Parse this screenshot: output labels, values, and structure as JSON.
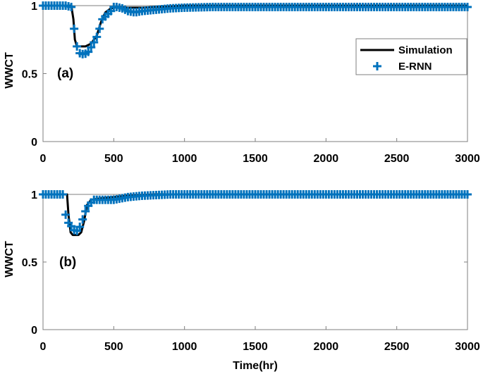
{
  "chart_data": [
    {
      "type": "line",
      "panel_label": "(a)",
      "title": "",
      "xlabel": "",
      "ylabel": "WWCT",
      "xlim": [
        0,
        3000
      ],
      "ylim": [
        0,
        1
      ],
      "xticks": [
        0,
        500,
        1000,
        1500,
        2000,
        2500,
        3000
      ],
      "yticks": [
        0,
        0.5,
        1
      ],
      "ytick_labels": [
        "0",
        "0.5",
        "1"
      ],
      "grid": false,
      "legend": {
        "position": "upper right",
        "entries": [
          "Simulation",
          "E-RNN"
        ]
      },
      "series": [
        {
          "name": "Simulation",
          "style": "solid-line",
          "color": "#000000",
          "x": [
            0,
            200,
            215,
            225,
            240,
            300,
            340,
            380,
            410,
            440,
            480,
            520,
            600,
            700,
            800,
            1000,
            3000
          ],
          "y": [
            1,
            1,
            0.9,
            0.75,
            0.7,
            0.7,
            0.72,
            0.78,
            0.88,
            0.95,
            0.98,
            0.99,
            0.985,
            0.985,
            0.99,
            1,
            1
          ]
        },
        {
          "name": "E-RNN",
          "style": "plus-marker",
          "color": "#0072BD",
          "x": [
            0,
            160,
            200,
            220,
            240,
            260,
            290,
            320,
            350,
            380,
            400,
            420,
            450,
            480,
            500,
            520,
            560,
            600,
            650,
            700,
            800,
            900,
            1000,
            1200,
            3000
          ],
          "y": [
            1,
            1,
            0.99,
            0.83,
            0.7,
            0.65,
            0.64,
            0.66,
            0.71,
            0.77,
            0.83,
            0.9,
            0.93,
            0.96,
            0.99,
            0.99,
            0.98,
            0.96,
            0.95,
            0.96,
            0.97,
            0.98,
            0.985,
            0.99,
            0.99
          ]
        }
      ]
    },
    {
      "type": "line",
      "panel_label": "(b)",
      "title": "",
      "xlabel": "Time(hr)",
      "ylabel": "WWCT",
      "xlim": [
        0,
        3000
      ],
      "ylim": [
        0,
        1
      ],
      "xticks": [
        0,
        500,
        1000,
        1500,
        2000,
        2500,
        3000
      ],
      "yticks": [
        0,
        0.5,
        1
      ],
      "ytick_labels": [
        "0",
        "0.5",
        "1"
      ],
      "grid": false,
      "series": [
        {
          "name": "Simulation",
          "style": "solid-line",
          "color": "#000000",
          "x": [
            0,
            170,
            180,
            195,
            210,
            250,
            270,
            290,
            310,
            340,
            400,
            500,
            600,
            800,
            1000,
            3000
          ],
          "y": [
            1,
            1,
            0.85,
            0.72,
            0.7,
            0.7,
            0.72,
            0.8,
            0.92,
            0.96,
            0.97,
            0.98,
            0.99,
            1,
            1,
            1
          ]
        },
        {
          "name": "E-RNN",
          "style": "plus-marker",
          "color": "#0072BD",
          "x": [
            0,
            140,
            150,
            170,
            190,
            210,
            230,
            250,
            270,
            290,
            310,
            330,
            360,
            400,
            500,
            550,
            600,
            700,
            800,
            900,
            3000
          ],
          "y": [
            1,
            1,
            0.9,
            0.8,
            0.78,
            0.75,
            0.72,
            0.74,
            0.78,
            0.85,
            0.9,
            0.93,
            0.96,
            0.96,
            0.96,
            0.97,
            0.98,
            0.99,
            0.995,
            1,
            1
          ]
        }
      ]
    }
  ],
  "figure": {
    "x_axis_title": "Time(hr)",
    "y_axis_title": "WWCT",
    "legend": {
      "simulation_label": "Simulation",
      "ernn_label": "E-RNN",
      "marker_glyph": "+"
    },
    "colors": {
      "simulation": "#000000",
      "ernn": "#0072BD",
      "axes": "#7f7f7f"
    },
    "marker_step_hr": 20
  }
}
